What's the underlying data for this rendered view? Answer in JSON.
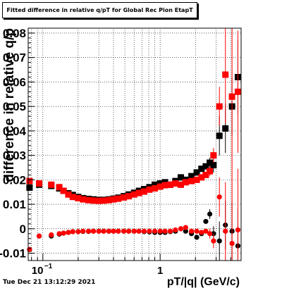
{
  "chart_data": {
    "type": "scatter",
    "title": "Fitted difference in relative q/pT for Global Rec Pion EtapT",
    "xlabel": "pT/|q| (GeV/c)",
    "ylabel": "difference in relative q/p",
    "x_scale": "log",
    "xlim": [
      0.075,
      4.9
    ],
    "ylim": [
      -0.013,
      0.082
    ],
    "grid": true,
    "x_tick_labels": [
      "10^-1",
      "1"
    ],
    "y_ticks": [
      -0.01,
      0,
      0.01,
      0.02,
      0.03,
      0.04,
      0.05,
      0.06,
      0.07,
      0.08
    ],
    "y_tick_labels": [
      "-0.01",
      "0",
      "0.01",
      "0.02",
      "0.03",
      "0.04",
      "0.05",
      "0.06",
      "0.07",
      "0.08"
    ],
    "series": [
      {
        "color": "#000000",
        "marker": "square",
        "points": [
          [
            0.077,
            0.0168
          ],
          [
            0.093,
            0.018
          ],
          [
            0.118,
            0.0175
          ],
          [
            0.138,
            0.0165
          ],
          [
            0.15,
            0.0155
          ],
          [
            0.165,
            0.0145
          ],
          [
            0.18,
            0.0138
          ],
          [
            0.2,
            0.013
          ],
          [
            0.22,
            0.0125
          ],
          [
            0.245,
            0.0122
          ],
          [
            0.27,
            0.012
          ],
          [
            0.3,
            0.0118
          ],
          [
            0.33,
            0.0118
          ],
          [
            0.365,
            0.012
          ],
          [
            0.4,
            0.0123
          ],
          [
            0.44,
            0.0127
          ],
          [
            0.49,
            0.0133
          ],
          [
            0.54,
            0.014
          ],
          [
            0.6,
            0.0147
          ],
          [
            0.66,
            0.0155
          ],
          [
            0.73,
            0.0162
          ],
          [
            0.81,
            0.017
          ],
          [
            0.9,
            0.018
          ],
          [
            1.0,
            0.0185
          ],
          [
            1.1,
            0.019
          ],
          [
            1.22,
            0.018
          ],
          [
            1.35,
            0.0195
          ],
          [
            1.5,
            0.021
          ],
          [
            1.65,
            0.02
          ],
          [
            1.85,
            0.0215
          ],
          [
            2.05,
            0.023
          ],
          [
            2.25,
            0.0245
          ],
          [
            2.45,
            0.0255
          ],
          [
            2.65,
            0.027
          ],
          [
            2.85,
            0.026
          ],
          [
            3.2,
            0.038
          ],
          [
            3.6,
            0.041
          ],
          [
            4.1,
            0.05
          ],
          [
            4.6,
            0.062
          ]
        ],
        "errors": [
          0,
          0,
          0,
          0,
          0,
          0,
          0,
          0,
          0,
          0,
          0,
          0,
          0,
          0,
          0,
          0,
          0,
          0,
          0,
          0,
          0,
          0,
          0,
          0,
          0,
          0,
          0,
          0,
          0,
          0,
          0,
          0,
          0.001,
          0.002,
          0.003,
          0.008,
          0.01,
          0.012,
          0.015
        ]
      },
      {
        "color": "#ff0000",
        "marker": "square",
        "points": [
          [
            0.077,
            0.0195
          ],
          [
            0.093,
            0.0185
          ],
          [
            0.118,
            0.018
          ],
          [
            0.138,
            0.017
          ],
          [
            0.15,
            0.0155
          ],
          [
            0.165,
            0.014
          ],
          [
            0.18,
            0.013
          ],
          [
            0.2,
            0.0125
          ],
          [
            0.22,
            0.012
          ],
          [
            0.245,
            0.0117
          ],
          [
            0.27,
            0.0115
          ],
          [
            0.3,
            0.0114
          ],
          [
            0.33,
            0.0115
          ],
          [
            0.365,
            0.0117
          ],
          [
            0.4,
            0.012
          ],
          [
            0.44,
            0.0123
          ],
          [
            0.49,
            0.0128
          ],
          [
            0.54,
            0.0133
          ],
          [
            0.6,
            0.014
          ],
          [
            0.66,
            0.0146
          ],
          [
            0.73,
            0.0152
          ],
          [
            0.81,
            0.016
          ],
          [
            0.9,
            0.0165
          ],
          [
            1.0,
            0.0172
          ],
          [
            1.1,
            0.0178
          ],
          [
            1.22,
            0.018
          ],
          [
            1.35,
            0.0185
          ],
          [
            1.5,
            0.018
          ],
          [
            1.65,
            0.019
          ],
          [
            1.85,
            0.0195
          ],
          [
            2.05,
            0.02
          ],
          [
            2.25,
            0.021
          ],
          [
            2.45,
            0.022
          ],
          [
            2.65,
            0.0235
          ],
          [
            2.85,
            0.03
          ],
          [
            3.2,
            0.05
          ],
          [
            3.6,
            0.063
          ],
          [
            4.1,
            0.054
          ],
          [
            4.6,
            0.056
          ]
        ],
        "errors": [
          0,
          0,
          0,
          0,
          0,
          0,
          0,
          0,
          0,
          0,
          0,
          0,
          0,
          0,
          0,
          0,
          0,
          0,
          0,
          0,
          0,
          0,
          0,
          0,
          0,
          0,
          0,
          0,
          0,
          0,
          0,
          0,
          0.001,
          0.002,
          0.003,
          0.008,
          0.02,
          0.03,
          0.025
        ]
      },
      {
        "color": "#000000",
        "marker": "circle",
        "points": [
          [
            0.077,
            -0.0085
          ],
          [
            0.093,
            -0.003
          ],
          [
            0.118,
            -0.003
          ],
          [
            0.138,
            -0.0022
          ],
          [
            0.15,
            -0.0018
          ],
          [
            0.165,
            -0.0015
          ],
          [
            0.18,
            -0.0012
          ],
          [
            0.2,
            -0.0012
          ],
          [
            0.22,
            -0.0011
          ],
          [
            0.245,
            -0.0011
          ],
          [
            0.27,
            -0.001
          ],
          [
            0.3,
            -0.001
          ],
          [
            0.33,
            -0.001
          ],
          [
            0.365,
            -0.001
          ],
          [
            0.4,
            -0.001
          ],
          [
            0.44,
            -0.001
          ],
          [
            0.49,
            -0.001
          ],
          [
            0.54,
            -0.001
          ],
          [
            0.6,
            -0.001
          ],
          [
            0.66,
            -0.001
          ],
          [
            0.73,
            -0.0012
          ],
          [
            0.81,
            -0.0013
          ],
          [
            0.9,
            -0.0015
          ],
          [
            1.0,
            -0.0015
          ],
          [
            1.1,
            -0.0015
          ],
          [
            1.22,
            -0.0012
          ],
          [
            1.35,
            -0.001
          ],
          [
            1.5,
            0.0
          ],
          [
            1.65,
            -0.001
          ],
          [
            1.85,
            -0.002
          ],
          [
            2.05,
            -0.0035
          ],
          [
            2.25,
            -0.002
          ],
          [
            2.45,
            0.003
          ],
          [
            2.65,
            0.006
          ],
          [
            2.85,
            -0.002
          ],
          [
            3.2,
            -0.005
          ],
          [
            3.6,
            0.0015
          ],
          [
            4.1,
            -0.001
          ],
          [
            4.6,
            -0.007
          ]
        ],
        "errors": [
          0,
          0,
          0,
          0,
          0,
          0,
          0,
          0,
          0,
          0,
          0,
          0,
          0,
          0,
          0,
          0,
          0,
          0,
          0,
          0,
          0,
          0,
          0,
          0,
          0,
          0,
          0,
          0,
          0,
          0,
          0,
          0,
          0.001,
          0.002,
          0.003,
          0.008,
          0.01,
          0.012,
          0.015
        ]
      },
      {
        "color": "#ff0000",
        "marker": "circle",
        "points": [
          [
            0.077,
            -0.0085
          ],
          [
            0.093,
            -0.003
          ],
          [
            0.118,
            -0.0025
          ],
          [
            0.138,
            -0.002
          ],
          [
            0.15,
            -0.0018
          ],
          [
            0.165,
            -0.0015
          ],
          [
            0.18,
            -0.0012
          ],
          [
            0.2,
            -0.0012
          ],
          [
            0.22,
            -0.001
          ],
          [
            0.245,
            -0.001
          ],
          [
            0.27,
            -0.001
          ],
          [
            0.3,
            -0.001
          ],
          [
            0.33,
            -0.001
          ],
          [
            0.365,
            -0.001
          ],
          [
            0.4,
            -0.001
          ],
          [
            0.44,
            -0.001
          ],
          [
            0.49,
            -0.001
          ],
          [
            0.54,
            -0.001
          ],
          [
            0.6,
            -0.001
          ],
          [
            0.66,
            -0.001
          ],
          [
            0.73,
            -0.001
          ],
          [
            0.81,
            -0.001
          ],
          [
            0.9,
            -0.001
          ],
          [
            1.0,
            -0.001
          ],
          [
            1.1,
            -0.001
          ],
          [
            1.22,
            -0.001
          ],
          [
            1.35,
            -0.0005
          ],
          [
            1.5,
            0.0
          ],
          [
            1.65,
            0.0005
          ],
          [
            1.85,
            -0.001
          ],
          [
            2.05,
            -0.001
          ],
          [
            2.25,
            -0.0015
          ],
          [
            2.45,
            -0.001
          ],
          [
            2.65,
            -0.002
          ],
          [
            2.85,
            -0.005
          ],
          [
            3.2,
            0.013
          ],
          [
            3.6,
            -0.001
          ],
          [
            4.1,
            -0.006
          ],
          [
            4.6,
            -0.0005
          ]
        ],
        "errors": [
          0,
          0,
          0,
          0,
          0,
          0,
          0,
          0,
          0,
          0,
          0,
          0,
          0,
          0,
          0,
          0,
          0,
          0,
          0,
          0,
          0,
          0,
          0,
          0,
          0,
          0,
          0,
          0,
          0,
          0,
          0,
          0,
          0.001,
          0.002,
          0.003,
          0.008,
          0.02,
          0.03,
          0.025
        ]
      }
    ]
  },
  "footer": {
    "timestamp": "Tue Dec 21 13:12:29 2021"
  }
}
